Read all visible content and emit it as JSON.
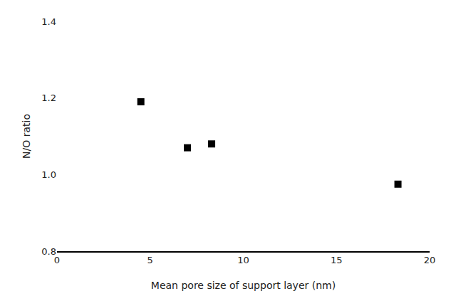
{
  "chart_data": {
    "type": "scatter",
    "x": [
      4.5,
      7.0,
      8.3,
      18.3
    ],
    "values": [
      1.19,
      1.07,
      1.08,
      0.975
    ],
    "color": "#000000",
    "marker": "square",
    "xlabel": "Mean pore size of support layer (nm)",
    "ylabel": "N/O ratio",
    "xlim": [
      0,
      20
    ],
    "ylim": [
      0.8,
      1.4
    ],
    "xticks": [
      0,
      5,
      10,
      15,
      20
    ],
    "yticks": [
      0.8,
      {
        "value": 1.0,
        "label": "1.0"
      },
      1.2,
      1.4
    ],
    "grid": false
  }
}
